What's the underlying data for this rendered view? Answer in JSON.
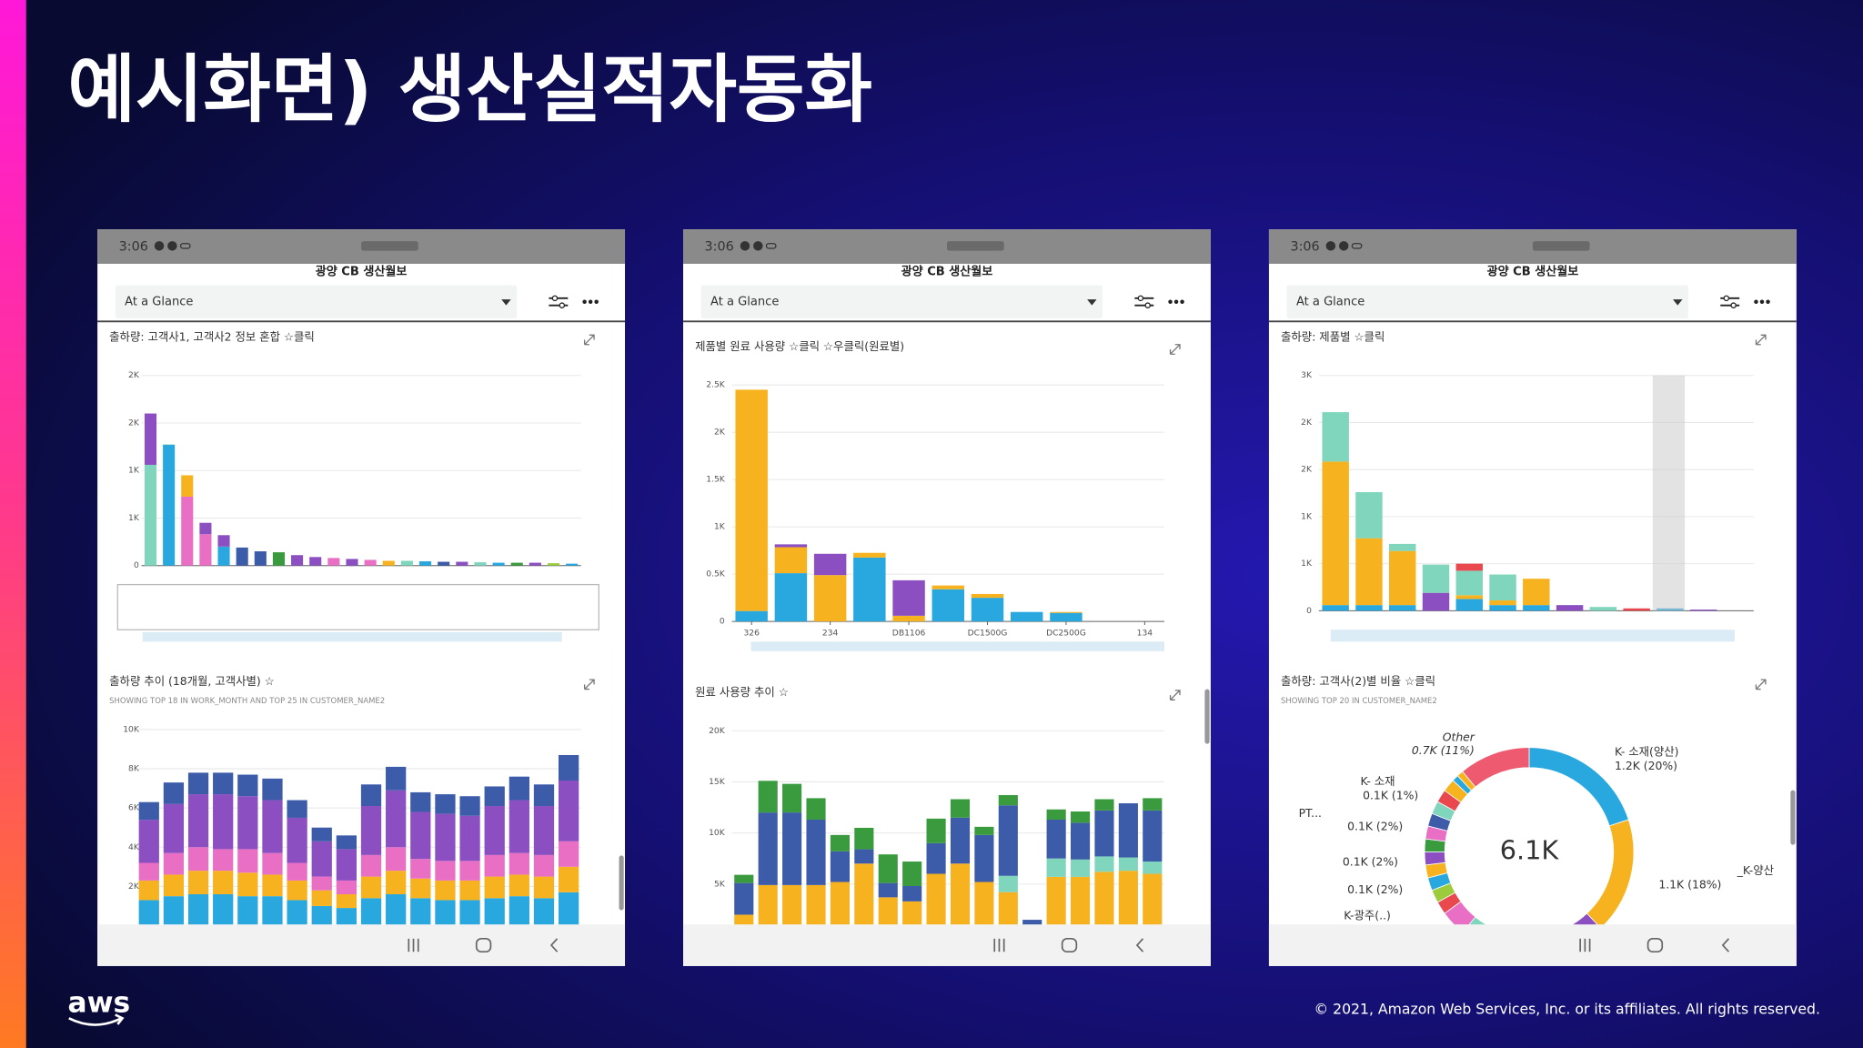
{
  "title": "예시화면) 생산실적자동화",
  "footer": {
    "logo": "aws",
    "copyright": "© 2021, Amazon Web Services, Inc. or its affiliates. All rights reserved."
  },
  "phones": [
    {
      "time": "3:06",
      "app_title": "광양 CB 생산월보",
      "dropdown": "At a Glance",
      "charts": [
        {
          "type": "bar",
          "stacked": true,
          "title": "출하량: 고객사1, 고객사2 정보 혼합 ☆클릭",
          "ylim": [
            0,
            2000
          ],
          "yticks": [
            {
              "value": 2000,
              "label": "2K"
            },
            {
              "value": 1500,
              "label": "2K"
            },
            {
              "value": 1000,
              "label": "1K"
            },
            {
              "value": 500,
              "label": "1K"
            },
            0
          ],
          "grid": true,
          "series": [
            {
              "values": [
                1060,
                1270,
                725,
                330,
                200,
                190,
                150,
                140,
                110,
                90,
                80,
                70,
                60,
                50,
                50,
                45,
                40,
                40,
                35,
                30,
                30,
                30,
                25,
                20
              ],
              "colors": [
                "#7fd6bc",
                "#29a8e0",
                "#e86fc4",
                "#e86fc4",
                "#29a8e0",
                "#3c5ba9",
                "#3c5ba9",
                "#3a9a3e",
                "#8c4fc1",
                "#8c4fc1",
                "#e86fc4",
                "#8c4fc1",
                "#e86fc4",
                "#f7b21f",
                "#7fd6bc",
                "#29a8e0",
                "#3c5ba9",
                "#8c4fc1",
                "#7fd6bc",
                "#29a8e0",
                "#3a9a3e",
                "#8c4fc1",
                "#9ccc3c",
                "#29a8e0"
              ]
            },
            {
              "values": [
                540,
                5,
                225,
                120,
                120,
                0,
                0,
                0,
                0,
                0,
                0,
                0,
                0,
                0,
                0,
                0,
                0,
                0,
                0,
                0,
                0,
                0,
                0,
                0
              ],
              "colors": [
                "#8c4fc1",
                "#7fd6bc",
                "#f7b21f",
                "#8c4fc1",
                "#8c4fc1",
                "#8c4fc1",
                "#8c4fc1",
                "#8c4fc1",
                "#8c4fc1",
                "#8c4fc1",
                "#8c4fc1",
                "#8c4fc1",
                "#8c4fc1",
                "#8c4fc1",
                "#8c4fc1",
                "#8c4fc1",
                "#8c4fc1",
                "#8c4fc1",
                "#8c4fc1",
                "#8c4fc1",
                "#8c4fc1",
                "#8c4fc1",
                "#8c4fc1",
                "#8c4fc1"
              ]
            }
          ]
        },
        {
          "type": "bar",
          "stacked": true,
          "title": "출하량 추이 (18개월, 고객사별) ☆",
          "subtitle": "SHOWING TOP 18 IN WORK_MONTH AND TOP 25 IN CUSTOMER_NAME2",
          "ylim": [
            0,
            10000
          ],
          "yticks": [
            {
              "value": 10000,
              "label": "10K"
            },
            {
              "value": 8000,
              "label": "8K"
            },
            {
              "value": 6000,
              "label": "6K"
            },
            {
              "value": 4000,
              "label": "4K"
            },
            {
              "value": 2000,
              "label": "2K"
            }
          ],
          "grid": true,
          "series": [
            {
              "color": "#29a8e0",
              "values": [
                1300,
                1500,
                1600,
                1600,
                1500,
                1500,
                1300,
                1000,
                900,
                1400,
                1600,
                1400,
                1300,
                1300,
                1400,
                1500,
                1400,
                1700
              ]
            },
            {
              "color": "#f7b21f",
              "values": [
                1000,
                1100,
                1200,
                1200,
                1200,
                1100,
                1000,
                800,
                700,
                1100,
                1200,
                1000,
                1000,
                1000,
                1100,
                1100,
                1100,
                1300
              ]
            },
            {
              "color": "#e86fc4",
              "values": [
                900,
                1100,
                1200,
                1100,
                1200,
                1100,
                900,
                700,
                700,
                1100,
                1200,
                1000,
                1000,
                1000,
                1100,
                1100,
                1100,
                1300
              ]
            },
            {
              "color": "#8c4fc1",
              "values": [
                2200,
                2500,
                2700,
                2800,
                2700,
                2700,
                2300,
                1800,
                1600,
                2500,
                2900,
                2400,
                2400,
                2300,
                2500,
                2700,
                2500,
                3100
              ]
            },
            {
              "color": "#3c5ba9",
              "values": [
                900,
                1100,
                1100,
                1100,
                1100,
                1100,
                900,
                700,
                700,
                1100,
                1200,
                1000,
                1000,
                1000,
                1000,
                1200,
                1100,
                1300
              ]
            }
          ]
        }
      ]
    },
    {
      "time": "3:06",
      "app_title": "광양 CB 생산월보",
      "dropdown": "At a Glance",
      "charts": [
        {
          "type": "bar",
          "stacked": true,
          "title": "제품별 원료 사용량 ☆클릭 ☆우클릭(원료별)",
          "categories": [
            "326",
            null,
            "234",
            null,
            "DB1106",
            null,
            "DC1500G",
            null,
            "DC2500G",
            null,
            "134"
          ],
          "ylim": [
            0,
            2500
          ],
          "yticks": [
            {
              "value": 2500,
              "label": "2.5K"
            },
            {
              "value": 2000,
              "label": "2K"
            },
            {
              "value": 1500,
              "label": "1.5K"
            },
            {
              "value": 1000,
              "label": "1K"
            },
            {
              "value": 500,
              "label": "0.5K"
            },
            0
          ],
          "grid": true,
          "series": [
            {
              "color": "#29a8e0",
              "values": [
                110,
                510,
                0,
                675,
                0,
                340,
                250,
                100,
                90,
                0,
                0
              ]
            },
            {
              "color": "#f7b21f",
              "values": [
                2340,
                275,
                490,
                50,
                60,
                40,
                40,
                0,
                10,
                0,
                0
              ]
            },
            {
              "color": "#8c4fc1",
              "values": [
                0,
                30,
                225,
                0,
                375,
                0,
                0,
                0,
                0,
                0,
                0
              ]
            }
          ]
        },
        {
          "type": "bar",
          "stacked": true,
          "title": "원료 사용량 추이 ☆",
          "ylim": [
            0,
            20000
          ],
          "yticks": [
            {
              "value": 20000,
              "label": "20K"
            },
            {
              "value": 15000,
              "label": "15K"
            },
            {
              "value": 10000,
              "label": "10K"
            },
            {
              "value": 5000,
              "label": "5K"
            }
          ],
          "grid": true,
          "series": [
            {
              "color": "#f7b21f",
              "values": [
                2000,
                4900,
                4900,
                4900,
                5200,
                7000,
                3700,
                3300,
                6000,
                7000,
                5200,
                4200,
                500,
                5700,
                5700,
                6200,
                6300,
                6000
              ]
            },
            {
              "color": "#7fd6bc",
              "values": [
                0,
                0,
                0,
                0,
                0,
                0,
                0,
                0,
                0,
                0,
                0,
                1600,
                0,
                1800,
                1700,
                1500,
                1300,
                1200
              ]
            },
            {
              "color": "#3c5ba9",
              "values": [
                3100,
                7100,
                7100,
                6400,
                3000,
                1400,
                1400,
                1500,
                3000,
                4500,
                4600,
                6900,
                1000,
                3800,
                3600,
                4500,
                5300,
                5000
              ]
            },
            {
              "color": "#3a9a3e",
              "values": [
                800,
                3100,
                2800,
                2100,
                1600,
                2100,
                2800,
                2400,
                2400,
                1800,
                800,
                1000,
                0,
                1000,
                1100,
                1100,
                0,
                1200
              ]
            }
          ]
        }
      ]
    },
    {
      "time": "3:06",
      "app_title": "광양 CB 생산월보",
      "dropdown": "At a Glance",
      "charts": [
        {
          "type": "bar",
          "stacked": true,
          "title": "출하량: 제품별 ☆클릭",
          "ylim": [
            0,
            2500
          ],
          "yticks": [
            {
              "value": 2500,
              "label": "3K"
            },
            {
              "value": 2000,
              "label": "2K"
            },
            {
              "value": 1500,
              "label": "2K"
            },
            {
              "value": 1000,
              "label": "1K"
            },
            {
              "value": 500,
              "label": "1K"
            },
            0
          ],
          "grid": true,
          "series": [
            {
              "color": "#29a8e0",
              "values": [
                60,
                60,
                60,
                0,
                125,
                60,
                60,
                0,
                0,
                0,
                25,
                0,
                0
              ]
            },
            {
              "color": "#f7b21f",
              "values": [
                1525,
                710,
                575,
                0,
                40,
                50,
                280,
                0,
                0,
                0,
                0,
                0,
                0
              ]
            },
            {
              "color": "#8c4fc1",
              "values": [
                0,
                0,
                0,
                190,
                0,
                0,
                0,
                60,
                0,
                0,
                0,
                12,
                0
              ]
            },
            {
              "color": "#7fd6bc",
              "values": [
                525,
                490,
                75,
                300,
                260,
                275,
                0,
                0,
                40,
                0,
                0,
                0,
                0
              ]
            },
            {
              "color": "#e8484e",
              "values": [
                0,
                0,
                0,
                0,
                75,
                0,
                0,
                0,
                0,
                25,
                0,
                0,
                0
              ]
            }
          ]
        },
        {
          "type": "donut",
          "title": "출하량: 고객사(2)별 비율 ☆클릭",
          "subtitle": "SHOWING TOP 20 IN CUSTOMER_NAME2",
          "center_label": "6.1K",
          "categories": [
            "K- 소재(양산)",
            "_K-양산",
            null,
            null,
            null,
            null,
            null,
            "K-광주(..)",
            null,
            null,
            null,
            "PT...",
            null,
            null,
            null,
            null,
            null,
            null,
            "K- 소재",
            null,
            "Other"
          ],
          "values": [
            20,
            18,
            7,
            6,
            5,
            5,
            4,
            2,
            2,
            2,
            2,
            2,
            2,
            2,
            2,
            2,
            2,
            2,
            1,
            1,
            11
          ],
          "value_labels": [
            "1.2K (20%)",
            "1.1K (18%)",
            null,
            null,
            null,
            null,
            null,
            null,
            "0.1K (2%)",
            "0.1K (2%)",
            null,
            "0.1K (2%)",
            null,
            null,
            null,
            null,
            null,
            null,
            "0.1K (1%)",
            null,
            "0.7K (11%)"
          ],
          "colors": [
            "#29a8e0",
            "#f7b21f",
            "#8c4fc1",
            "#3a9a3e",
            "#3c5ba9",
            "#7fd6bc",
            "#e86fc4",
            "#e8484e",
            "#9ccc3c",
            "#29a8e0",
            "#f7b21f",
            "#8c4fc1",
            "#3a9a3e",
            "#e86fc4",
            "#3c5ba9",
            "#7fd6bc",
            "#e8484e",
            "#f7b21f",
            "#29a8e0",
            "#f7b21f",
            "#ee5a6f"
          ]
        }
      ]
    }
  ]
}
